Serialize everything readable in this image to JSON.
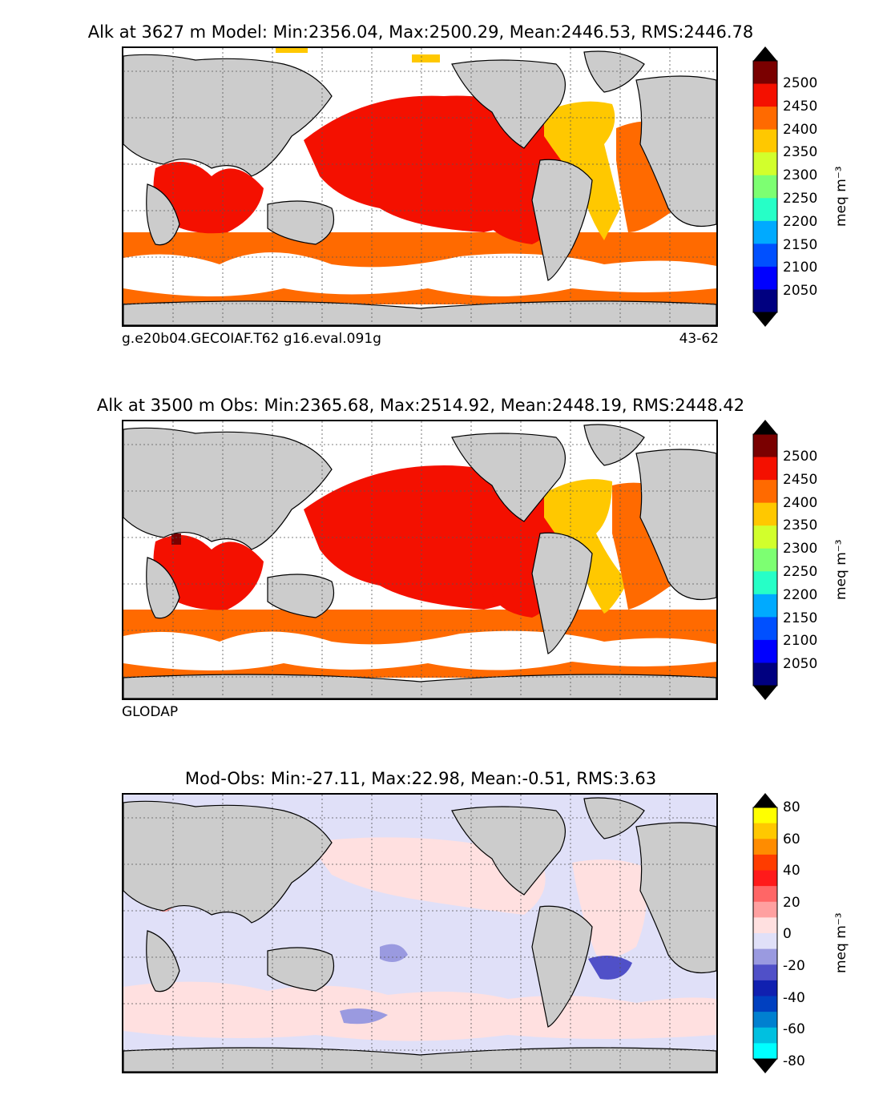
{
  "panels": [
    {
      "title": "Alk at 3627 m Model: Min:2356.04, Max:2500.29, Mean:2446.53, RMS:2446.78",
      "caption_left": "g.e20b04.GECOIAF.T62 g16.eval.091g",
      "caption_right": "43-62",
      "colorbar": {
        "unit": "meq m⁻³",
        "ticks": [
          "2500",
          "2450",
          "2400",
          "2350",
          "2300",
          "2250",
          "2200",
          "2150",
          "2100",
          "2050"
        ],
        "colors": [
          "#7a0000",
          "#f41000",
          "#ff6a00",
          "#ffc800",
          "#d2ff2c",
          "#7dff72",
          "#26ffc7",
          "#00aaff",
          "#0050ff",
          "#0000ff",
          "#000080"
        ]
      }
    },
    {
      "title": "Alk at 3500 m Obs: Min:2365.68, Max:2514.92, Mean:2448.19, RMS:2448.42",
      "caption_left": "GLODAP",
      "caption_right": "",
      "colorbar": {
        "unit": "meq m⁻³",
        "ticks": [
          "2500",
          "2450",
          "2400",
          "2350",
          "2300",
          "2250",
          "2200",
          "2150",
          "2100",
          "2050"
        ],
        "colors": [
          "#7a0000",
          "#f41000",
          "#ff6a00",
          "#ffc800",
          "#d2ff2c",
          "#7dff72",
          "#26ffc7",
          "#00aaff",
          "#0050ff",
          "#0000ff",
          "#000080"
        ]
      }
    },
    {
      "title": "Mod-Obs: Min:-27.11, Max:22.98, Mean:-0.51, RMS:3.63",
      "caption_left": "",
      "caption_right": "",
      "colorbar": {
        "unit": "meq m⁻³",
        "ticks": [
          "80",
          "60",
          "40",
          "20",
          "0",
          "-20",
          "-40",
          "-60",
          "-80"
        ],
        "colors": [
          "#ffff00",
          "#ffc800",
          "#ff8c00",
          "#ff3c00",
          "#ff1a1a",
          "#ff6666",
          "#ffa0a0",
          "#ffe0e0",
          "#e0e0f8",
          "#9a9ae0",
          "#5050c8",
          "#1020b0",
          "#0040c0",
          "#0080d0",
          "#00c0e0",
          "#00ffff"
        ]
      }
    }
  ],
  "colors": {
    "land": "#cccccc",
    "coast": "#000000",
    "ocean_missing": "#ffffff",
    "grid": "#666666"
  }
}
